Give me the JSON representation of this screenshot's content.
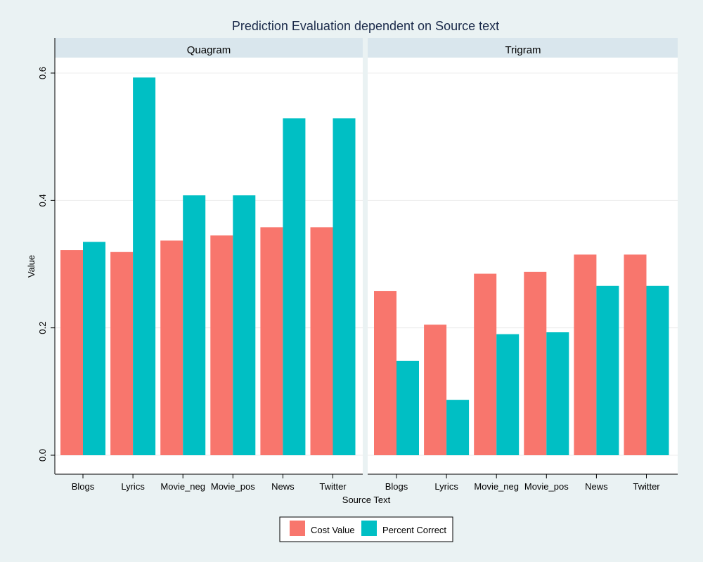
{
  "chart_data": {
    "type": "bar",
    "title": "Prediction Evaluation dependent on Source text",
    "xlabel": "Source Text",
    "ylabel": "Value",
    "ylim": [
      0,
      0.6
    ],
    "yticks": [
      "0.0",
      "0.2",
      "0.4",
      "0.6"
    ],
    "grid": true,
    "legend_position": "bottom",
    "categories": [
      "Blogs",
      "Lyrics",
      "Movie_neg",
      "Movie_pos",
      "News",
      "Twitter"
    ],
    "series_meta": [
      {
        "name": "Cost Value",
        "color": "#f8766d"
      },
      {
        "name": "Percent Correct",
        "color": "#00bfc4"
      }
    ],
    "facets": [
      {
        "label": "Quagram",
        "series": [
          {
            "name": "Cost Value",
            "values": [
              0.322,
              0.319,
              0.337,
              0.345,
              0.358,
              0.358
            ]
          },
          {
            "name": "Percent Correct",
            "values": [
              0.335,
              0.593,
              0.408,
              0.408,
              0.529,
              0.529
            ]
          }
        ]
      },
      {
        "label": "Trigram",
        "series": [
          {
            "name": "Cost Value",
            "values": [
              0.258,
              0.205,
              0.285,
              0.288,
              0.315,
              0.315
            ]
          },
          {
            "name": "Percent Correct",
            "values": [
              0.148,
              0.087,
              0.19,
              0.193,
              0.266,
              0.266
            ]
          }
        ]
      }
    ]
  }
}
